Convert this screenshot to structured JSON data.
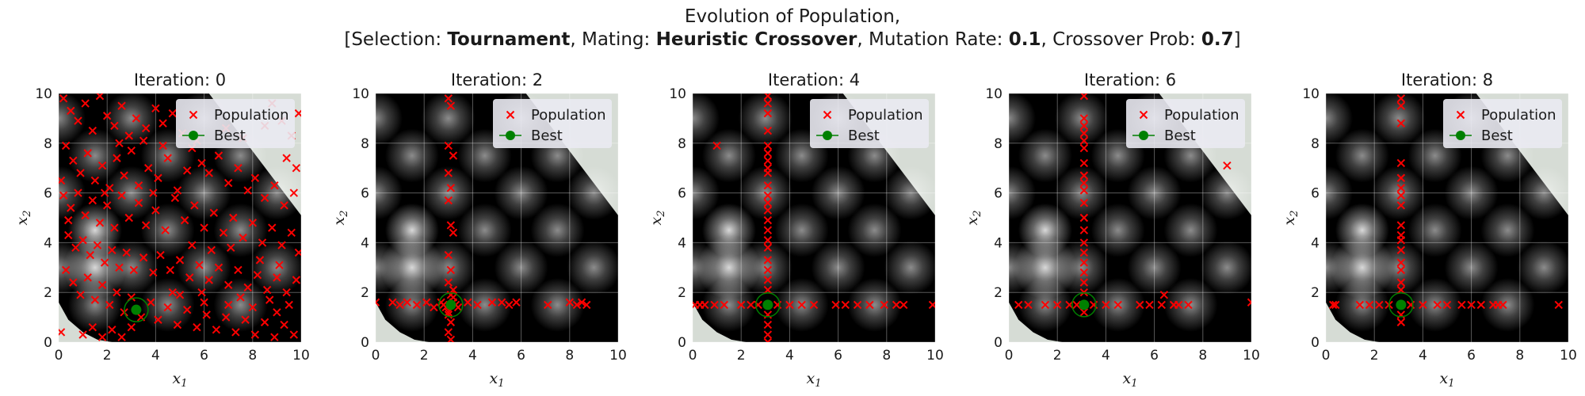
{
  "figure": {
    "title_line1": "Evolution of Population,",
    "title_line2_parts": [
      {
        "text": "[Selection: ",
        "bold": false
      },
      {
        "text": "Tournament",
        "bold": true
      },
      {
        "text": ", Mating: ",
        "bold": false
      },
      {
        "text": "Heuristic Crossover",
        "bold": true
      },
      {
        "text": ", Mutation Rate: ",
        "bold": false
      },
      {
        "text": "0.1",
        "bold": true
      },
      {
        "text": ", Crossover Prob: ",
        "bold": false
      },
      {
        "text": "0.7",
        "bold": true
      },
      {
        "text": "]",
        "bold": false
      }
    ]
  },
  "colors": {
    "population": "#ff0000",
    "best": "#008000",
    "outside_region": "#d6dcd5",
    "background_dark": "#000000"
  },
  "legend": {
    "population": "Population",
    "best": "Best",
    "placement": "top-right"
  },
  "chart_data": [
    {
      "type": "scatter",
      "title": "Iteration: 0",
      "xlabel": "x1",
      "ylabel": "x2",
      "xlim": [
        0,
        10
      ],
      "ylim": [
        0,
        10
      ],
      "xticks": [
        "0",
        "2",
        "4",
        "6",
        "8",
        "10"
      ],
      "yticks": [
        "0",
        "2",
        "4",
        "6",
        "8",
        "10"
      ],
      "best": [
        3.2,
        1.3
      ],
      "population": [
        [
          0.2,
          9.8
        ],
        [
          0.5,
          9.3
        ],
        [
          0.8,
          8.9
        ],
        [
          1.1,
          9.6
        ],
        [
          1.4,
          8.5
        ],
        [
          1.7,
          9.9
        ],
        [
          2.0,
          9.1
        ],
        [
          2.3,
          8.7
        ],
        [
          2.6,
          9.5
        ],
        [
          2.9,
          8.3
        ],
        [
          3.2,
          9.0
        ],
        [
          3.6,
          8.6
        ],
        [
          4.0,
          9.4
        ],
        [
          4.3,
          8.8
        ],
        [
          4.7,
          9.2
        ],
        [
          5.1,
          8.4
        ],
        [
          5.5,
          7.8
        ],
        [
          5.9,
          7.2
        ],
        [
          6.2,
          6.8
        ],
        [
          6.6,
          7.5
        ],
        [
          7.0,
          6.4
        ],
        [
          7.4,
          7.0
        ],
        [
          7.8,
          6.1
        ],
        [
          8.1,
          6.6
        ],
        [
          8.5,
          5.8
        ],
        [
          8.9,
          6.3
        ],
        [
          9.3,
          5.5
        ],
        [
          9.7,
          6.0
        ],
        [
          8.8,
          9.6
        ],
        [
          9.2,
          8.9
        ],
        [
          9.6,
          8.3
        ],
        [
          9.9,
          9.2
        ],
        [
          8.5,
          8.7
        ],
        [
          9.4,
          7.4
        ],
        [
          9.8,
          7.0
        ],
        [
          0.3,
          7.9
        ],
        [
          0.6,
          7.3
        ],
        [
          0.9,
          6.8
        ],
        [
          1.2,
          7.6
        ],
        [
          1.5,
          6.5
        ],
        [
          1.8,
          7.1
        ],
        [
          2.1,
          6.2
        ],
        [
          2.4,
          7.4
        ],
        [
          2.7,
          6.7
        ],
        [
          3.0,
          7.7
        ],
        [
          3.3,
          6.3
        ],
        [
          3.7,
          7.0
        ],
        [
          4.1,
          6.6
        ],
        [
          4.5,
          7.4
        ],
        [
          4.9,
          6.1
        ],
        [
          5.3,
          6.9
        ],
        [
          0.2,
          5.9
        ],
        [
          0.5,
          5.4
        ],
        [
          0.8,
          6.0
        ],
        [
          1.1,
          5.1
        ],
        [
          1.4,
          5.7
        ],
        [
          1.7,
          4.8
        ],
        [
          2.0,
          5.5
        ],
        [
          2.3,
          4.6
        ],
        [
          2.6,
          5.9
        ],
        [
          2.9,
          5.0
        ],
        [
          3.3,
          5.6
        ],
        [
          3.6,
          4.7
        ],
        [
          4.0,
          5.3
        ],
        [
          4.4,
          4.5
        ],
        [
          4.8,
          5.8
        ],
        [
          5.2,
          4.9
        ],
        [
          5.6,
          5.5
        ],
        [
          6.0,
          4.6
        ],
        [
          6.4,
          5.2
        ],
        [
          6.8,
          4.4
        ],
        [
          7.2,
          5.0
        ],
        [
          7.6,
          4.2
        ],
        [
          8.0,
          4.8
        ],
        [
          8.4,
          4.0
        ],
        [
          8.8,
          4.6
        ],
        [
          9.2,
          3.9
        ],
        [
          9.6,
          4.4
        ],
        [
          9.9,
          3.6
        ],
        [
          0.4,
          4.3
        ],
        [
          0.7,
          3.8
        ],
        [
          1.0,
          4.1
        ],
        [
          1.3,
          3.5
        ],
        [
          1.6,
          3.9
        ],
        [
          1.9,
          3.2
        ],
        [
          2.2,
          3.7
        ],
        [
          2.5,
          3.0
        ],
        [
          2.8,
          3.6
        ],
        [
          3.1,
          2.9
        ],
        [
          3.5,
          3.4
        ],
        [
          3.9,
          2.8
        ],
        [
          4.2,
          3.5
        ],
        [
          4.6,
          2.9
        ],
        [
          5.0,
          3.3
        ],
        [
          5.4,
          2.6
        ],
        [
          5.8,
          3.1
        ],
        [
          6.2,
          2.5
        ],
        [
          6.6,
          3.0
        ],
        [
          7.0,
          2.3
        ],
        [
          7.4,
          2.9
        ],
        [
          7.8,
          2.2
        ],
        [
          8.2,
          2.7
        ],
        [
          8.6,
          2.1
        ],
        [
          9.0,
          2.6
        ],
        [
          9.4,
          2.0
        ],
        [
          9.8,
          2.5
        ],
        [
          0.6,
          2.4
        ],
        [
          0.9,
          1.9
        ],
        [
          1.2,
          2.6
        ],
        [
          1.5,
          1.7
        ],
        [
          1.8,
          2.3
        ],
        [
          2.1,
          1.5
        ],
        [
          2.4,
          2.0
        ],
        [
          2.7,
          1.2
        ],
        [
          3.0,
          1.8
        ],
        [
          3.4,
          1.0
        ],
        [
          3.8,
          1.6
        ],
        [
          4.1,
          0.9
        ],
        [
          4.5,
          1.4
        ],
        [
          4.9,
          0.7
        ],
        [
          5.3,
          1.3
        ],
        [
          5.7,
          0.6
        ],
        [
          6.1,
          1.1
        ],
        [
          6.5,
          0.5
        ],
        [
          6.9,
          1.0
        ],
        [
          7.3,
          0.4
        ],
        [
          7.7,
          0.9
        ],
        [
          8.1,
          0.3
        ],
        [
          8.5,
          0.8
        ],
        [
          8.9,
          0.2
        ],
        [
          9.3,
          0.7
        ],
        [
          9.7,
          0.3
        ],
        [
          1.0,
          0.3
        ],
        [
          1.4,
          0.6
        ],
        [
          1.8,
          0.2
        ],
        [
          2.2,
          0.5
        ],
        [
          2.6,
          0.2
        ],
        [
          3.0,
          0.6
        ],
        [
          5.0,
          1.9
        ],
        [
          6.0,
          1.6
        ],
        [
          7.0,
          1.5
        ],
        [
          8.0,
          1.4
        ],
        [
          9.0,
          1.2
        ],
        [
          4.3,
          7.9
        ],
        [
          5.7,
          8.1
        ],
        [
          6.9,
          8.6
        ],
        [
          7.6,
          8.2
        ],
        [
          0.1,
          0.4
        ],
        [
          0.3,
          2.9
        ],
        [
          0.4,
          4.9
        ],
        [
          0.1,
          6.5
        ],
        [
          3.5,
          8.1
        ],
        [
          2.5,
          8.0
        ],
        [
          1.9,
          6.0
        ],
        [
          3.9,
          6.0
        ],
        [
          5.5,
          3.9
        ],
        [
          6.3,
          3.7
        ],
        [
          7.1,
          3.8
        ],
        [
          8.3,
          3.3
        ],
        [
          9.1,
          3.1
        ],
        [
          4.7,
          2.0
        ],
        [
          5.9,
          2.0
        ],
        [
          7.5,
          1.8
        ],
        [
          8.7,
          1.7
        ],
        [
          9.5,
          1.5
        ]
      ]
    },
    {
      "type": "scatter",
      "title": "Iteration: 2",
      "xlabel": "x1",
      "ylabel": "x2",
      "xlim": [
        0,
        10
      ],
      "ylim": [
        0,
        10
      ],
      "xticks": [
        "0",
        "2",
        "4",
        "6",
        "8",
        "10"
      ],
      "yticks": [
        "0",
        "2",
        "4",
        "6",
        "8",
        "10"
      ],
      "best": [
        3.1,
        1.5
      ],
      "population": [
        [
          3.0,
          9.8
        ],
        [
          3.1,
          9.5
        ],
        [
          3.0,
          7.9
        ],
        [
          3.2,
          7.5
        ],
        [
          3.0,
          6.8
        ],
        [
          3.1,
          6.2
        ],
        [
          3.0,
          5.7
        ],
        [
          3.1,
          4.7
        ],
        [
          3.2,
          4.4
        ],
        [
          3.0,
          3.5
        ],
        [
          3.1,
          2.9
        ],
        [
          3.0,
          2.4
        ],
        [
          3.2,
          2.1
        ],
        [
          3.0,
          1.1
        ],
        [
          3.1,
          0.8
        ],
        [
          3.0,
          0.4
        ],
        [
          3.1,
          0.1
        ],
        [
          2.8,
          1.5
        ],
        [
          2.9,
          1.4
        ],
        [
          3.2,
          1.6
        ],
        [
          3.3,
          1.5
        ],
        [
          3.4,
          1.4
        ],
        [
          2.7,
          1.6
        ],
        [
          0.0,
          1.6
        ],
        [
          0.7,
          1.6
        ],
        [
          1.0,
          1.5
        ],
        [
          1.3,
          1.6
        ],
        [
          1.7,
          1.5
        ],
        [
          2.1,
          1.6
        ],
        [
          2.4,
          1.4
        ],
        [
          3.8,
          1.6
        ],
        [
          4.2,
          1.5
        ],
        [
          4.8,
          1.6
        ],
        [
          5.2,
          1.6
        ],
        [
          5.5,
          1.5
        ],
        [
          5.8,
          1.6
        ],
        [
          7.1,
          1.5
        ],
        [
          8.0,
          1.6
        ],
        [
          8.3,
          1.5
        ],
        [
          8.5,
          1.6
        ],
        [
          8.7,
          1.5
        ],
        [
          3.1,
          1.9
        ],
        [
          3.0,
          1.2
        ],
        [
          3.2,
          1.8
        ]
      ]
    },
    {
      "type": "scatter",
      "title": "Iteration: 4",
      "xlabel": "x1",
      "ylabel": "x2",
      "xlim": [
        0,
        10
      ],
      "ylim": [
        0,
        10
      ],
      "xticks": [
        "0",
        "2",
        "4",
        "6",
        "8",
        "10"
      ],
      "yticks": [
        "0",
        "2",
        "4",
        "6",
        "8",
        "10"
      ],
      "best": [
        3.1,
        1.5
      ],
      "population": [
        [
          3.1,
          9.9
        ],
        [
          3.1,
          9.6
        ],
        [
          3.1,
          9.2
        ],
        [
          3.1,
          8.5
        ],
        [
          3.1,
          7.9
        ],
        [
          3.1,
          7.6
        ],
        [
          3.1,
          7.3
        ],
        [
          3.1,
          7.0
        ],
        [
          3.1,
          6.8
        ],
        [
          3.1,
          6.3
        ],
        [
          3.1,
          5.9
        ],
        [
          3.1,
          5.6
        ],
        [
          3.1,
          5.3
        ],
        [
          3.1,
          4.9
        ],
        [
          3.1,
          4.5
        ],
        [
          3.1,
          4.1
        ],
        [
          3.1,
          3.8
        ],
        [
          3.1,
          3.3
        ],
        [
          3.1,
          2.9
        ],
        [
          3.1,
          2.5
        ],
        [
          3.1,
          2.1
        ],
        [
          3.1,
          1.1
        ],
        [
          3.1,
          0.7
        ],
        [
          3.1,
          0.3
        ],
        [
          3.1,
          0.0
        ],
        [
          1.0,
          7.9
        ],
        [
          0.1,
          1.5
        ],
        [
          0.3,
          1.5
        ],
        [
          0.5,
          1.5
        ],
        [
          0.9,
          1.5
        ],
        [
          1.3,
          1.5
        ],
        [
          2.0,
          1.5
        ],
        [
          2.4,
          1.5
        ],
        [
          2.7,
          1.5
        ],
        [
          3.5,
          1.5
        ],
        [
          4.0,
          1.5
        ],
        [
          4.5,
          1.5
        ],
        [
          5.0,
          1.5
        ],
        [
          5.9,
          1.5
        ],
        [
          6.3,
          1.5
        ],
        [
          6.8,
          1.5
        ],
        [
          7.3,
          1.5
        ],
        [
          7.9,
          1.5
        ],
        [
          8.4,
          1.5
        ],
        [
          8.7,
          1.5
        ],
        [
          9.9,
          1.5
        ]
      ]
    },
    {
      "type": "scatter",
      "title": "Iteration: 6",
      "xlabel": "x1",
      "ylabel": "x2",
      "xlim": [
        0,
        10
      ],
      "ylim": [
        0,
        10
      ],
      "xticks": [
        "0",
        "2",
        "4",
        "6",
        "8",
        "10"
      ],
      "yticks": [
        "0",
        "2",
        "4",
        "6",
        "8",
        "10"
      ],
      "best": [
        3.1,
        1.5
      ],
      "population": [
        [
          3.1,
          9.9
        ],
        [
          3.1,
          9.0
        ],
        [
          3.1,
          8.7
        ],
        [
          3.1,
          8.4
        ],
        [
          3.1,
          8.1
        ],
        [
          3.1,
          7.8
        ],
        [
          3.1,
          7.2
        ],
        [
          3.1,
          6.7
        ],
        [
          3.1,
          6.4
        ],
        [
          3.1,
          6.1
        ],
        [
          3.1,
          5.6
        ],
        [
          3.1,
          5.0
        ],
        [
          3.1,
          4.5
        ],
        [
          3.1,
          4.0
        ],
        [
          3.1,
          3.6
        ],
        [
          3.1,
          3.2
        ],
        [
          3.1,
          2.8
        ],
        [
          3.1,
          2.4
        ],
        [
          3.1,
          2.0
        ],
        [
          3.1,
          1.2
        ],
        [
          9.0,
          7.1
        ],
        [
          6.4,
          1.9
        ],
        [
          0.4,
          1.5
        ],
        [
          0.8,
          1.5
        ],
        [
          1.5,
          1.5
        ],
        [
          2.0,
          1.5
        ],
        [
          2.5,
          1.5
        ],
        [
          2.8,
          1.5
        ],
        [
          3.5,
          1.5
        ],
        [
          4.0,
          1.5
        ],
        [
          4.5,
          1.5
        ],
        [
          5.4,
          1.5
        ],
        [
          5.8,
          1.5
        ],
        [
          6.3,
          1.5
        ],
        [
          6.8,
          1.5
        ],
        [
          7.0,
          1.5
        ],
        [
          7.4,
          1.5
        ],
        [
          10.0,
          1.6
        ]
      ]
    },
    {
      "type": "scatter",
      "title": "Iteration: 8",
      "xlabel": "x1",
      "ylabel": "x2",
      "xlim": [
        0,
        10
      ],
      "ylim": [
        0,
        10
      ],
      "xticks": [
        "0",
        "2",
        "4",
        "6",
        "8",
        "10"
      ],
      "yticks": [
        "0",
        "2",
        "4",
        "6",
        "8",
        "10"
      ],
      "best": [
        3.1,
        1.5
      ],
      "population": [
        [
          3.1,
          9.8
        ],
        [
          3.1,
          9.5
        ],
        [
          3.1,
          8.8
        ],
        [
          3.1,
          7.2
        ],
        [
          3.1,
          6.6
        ],
        [
          3.1,
          6.2
        ],
        [
          3.1,
          5.9
        ],
        [
          3.1,
          5.5
        ],
        [
          3.1,
          4.7
        ],
        [
          3.1,
          4.3
        ],
        [
          3.1,
          4.1
        ],
        [
          3.1,
          3.7
        ],
        [
          3.1,
          3.2
        ],
        [
          3.1,
          2.9
        ],
        [
          3.1,
          2.4
        ],
        [
          3.1,
          2.1
        ],
        [
          3.1,
          1.1
        ],
        [
          3.1,
          0.8
        ],
        [
          0.3,
          1.5
        ],
        [
          0.4,
          1.5
        ],
        [
          1.4,
          1.5
        ],
        [
          1.8,
          1.5
        ],
        [
          2.2,
          1.5
        ],
        [
          2.6,
          1.5
        ],
        [
          3.5,
          1.5
        ],
        [
          4.0,
          1.5
        ],
        [
          4.6,
          1.5
        ],
        [
          5.0,
          1.5
        ],
        [
          5.6,
          1.5
        ],
        [
          6.0,
          1.5
        ],
        [
          6.4,
          1.5
        ],
        [
          6.9,
          1.5
        ],
        [
          7.1,
          1.5
        ],
        [
          7.3,
          1.5
        ],
        [
          9.6,
          1.5
        ]
      ]
    }
  ]
}
